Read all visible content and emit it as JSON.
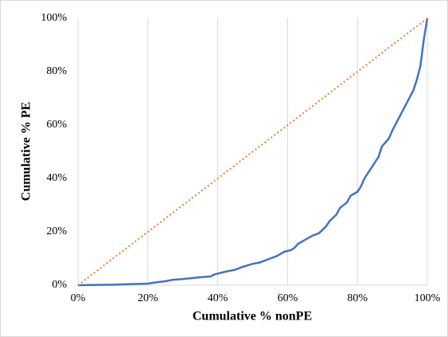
{
  "chart_data": {
    "type": "line",
    "xlabel": "Cumulative % nonPE",
    "ylabel": "Cumulative % PE",
    "xlim": [
      0,
      100
    ],
    "ylim": [
      0,
      100
    ],
    "xticks": [
      {
        "value": 0,
        "label": "0%"
      },
      {
        "value": 20,
        "label": "20%"
      },
      {
        "value": 40,
        "label": "40%"
      },
      {
        "value": 60,
        "label": "60%"
      },
      {
        "value": 80,
        "label": "80%"
      },
      {
        "value": 100,
        "label": "100%"
      }
    ],
    "yticks": [
      {
        "value": 0,
        "label": "0%"
      },
      {
        "value": 20,
        "label": "20%"
      },
      {
        "value": 40,
        "label": "40%"
      },
      {
        "value": 60,
        "label": "60%"
      },
      {
        "value": 80,
        "label": "80%"
      },
      {
        "value": 100,
        "label": "100%"
      }
    ],
    "xgrid": true,
    "ygrid": false,
    "series": [
      {
        "color": "#4472c4",
        "dash": false,
        "x": [
          0,
          10,
          15,
          20,
          22,
          25,
          27,
          30,
          35,
          38,
          39,
          42,
          45,
          47,
          50,
          52,
          55,
          57,
          59,
          61,
          62,
          63,
          65,
          67,
          69,
          71,
          72,
          74,
          75,
          77,
          78,
          80,
          81,
          82,
          84,
          86,
          87,
          89,
          90,
          92,
          94,
          96,
          97,
          98,
          99,
          100
        ],
        "values": [
          0,
          0.2,
          0.4,
          0.6,
          1,
          1.5,
          2,
          2.3,
          3,
          3.3,
          4,
          5,
          5.8,
          6.8,
          8,
          8.5,
          10,
          11,
          12.5,
          13.2,
          14,
          15.5,
          17,
          18.5,
          19.5,
          22,
          24,
          26.5,
          29,
          31,
          33.5,
          35,
          37,
          40,
          44,
          48,
          52,
          55,
          58,
          63,
          68,
          73,
          77,
          82,
          92,
          100
        ]
      },
      {
        "color": "#ed7d31",
        "dash": true,
        "x": [
          0,
          100
        ],
        "values": [
          0,
          100
        ]
      }
    ]
  }
}
